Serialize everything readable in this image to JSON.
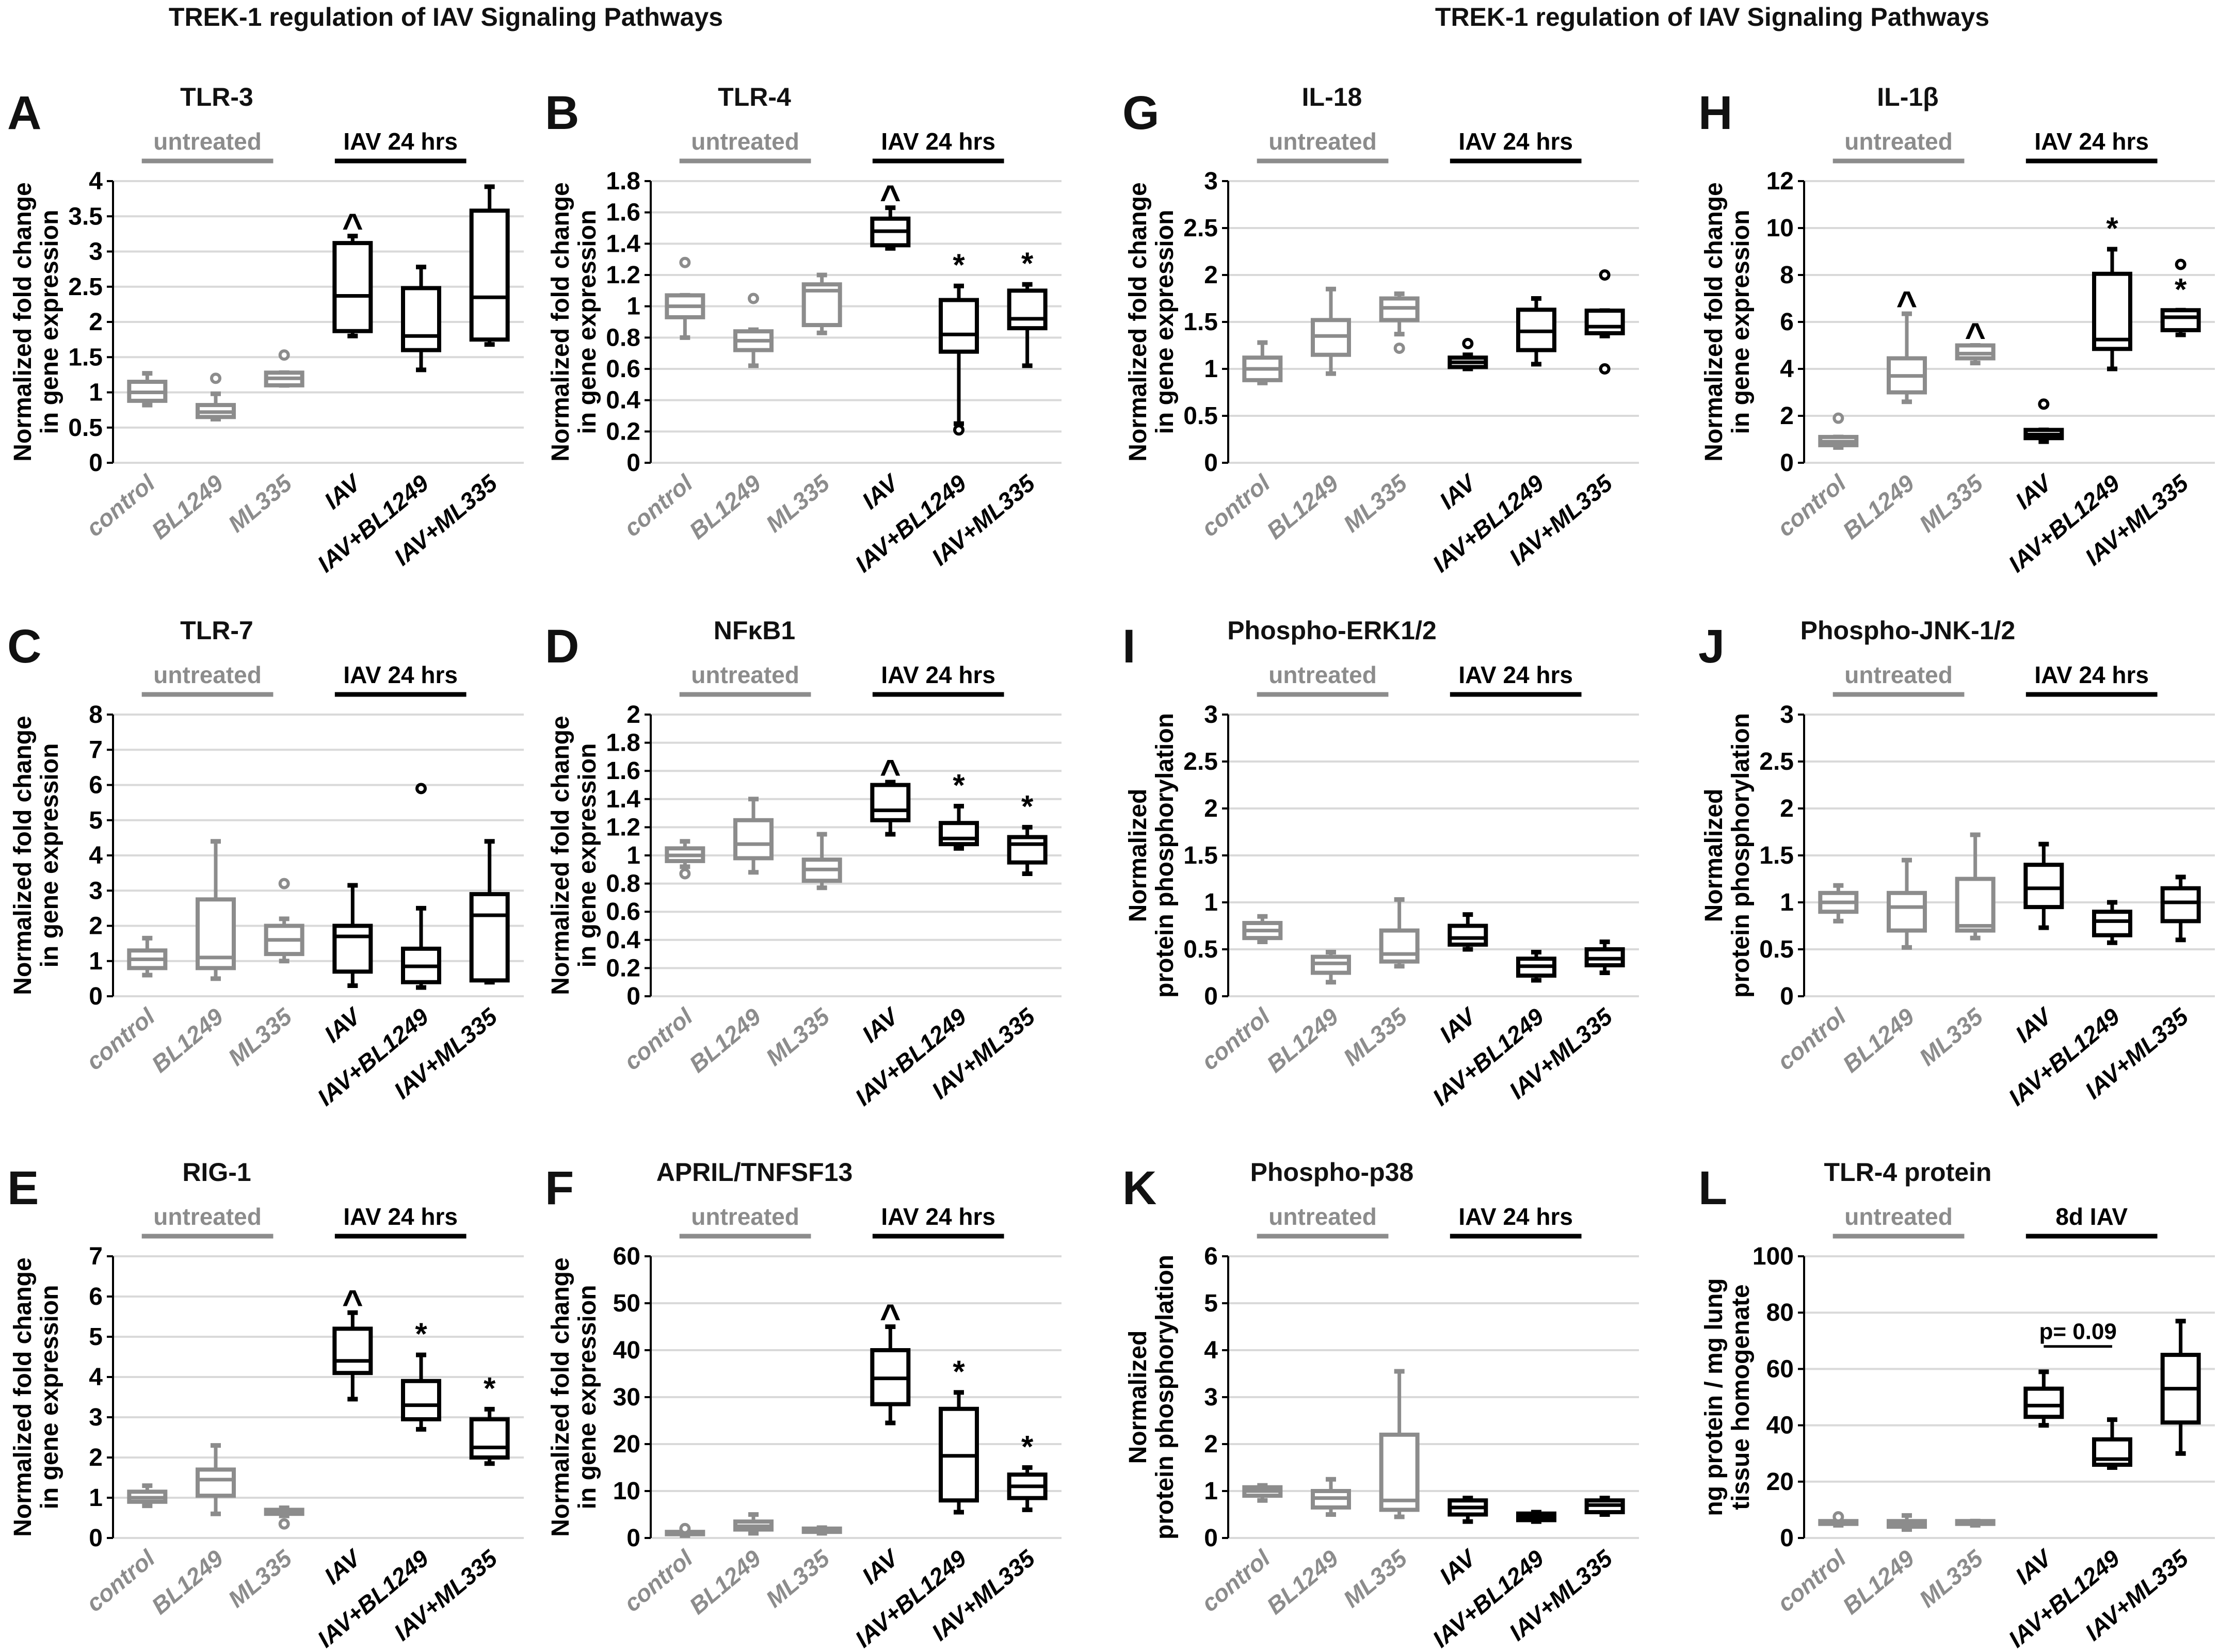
{
  "header": {
    "title_left": "TREK-1 regulation of IAV Signaling Pathways",
    "title_right": "TREK-1 regulation of IAV Signaling Pathways"
  },
  "colors": {
    "untreated": "#8c8c8c",
    "iav": "#000000",
    "grid": "#d9d9d9"
  },
  "chart_data": [
    {
      "type": "box",
      "letter": "A",
      "title": "TLR-3",
      "ylabel": [
        "Normalized fold change",
        "in gene expression"
      ],
      "ylim": [
        0,
        4
      ],
      "ystep": 0.5,
      "groups": [
        "untreated",
        "IAV 24 hrs"
      ],
      "categories": [
        "control",
        "BL1249",
        "ML335",
        "IAV",
        "IAV+BL1249",
        "IAV+ML335"
      ],
      "boxes": [
        [
          0.82,
          0.88,
          1.0,
          1.15,
          1.27
        ],
        [
          0.62,
          0.65,
          0.72,
          0.82,
          0.98
        ],
        [
          1.1,
          1.1,
          1.2,
          1.28,
          1.28
        ],
        [
          1.8,
          1.87,
          2.37,
          3.12,
          3.22
        ],
        [
          1.32,
          1.6,
          1.8,
          2.48,
          2.78
        ],
        [
          1.68,
          1.75,
          2.35,
          3.58,
          3.92
        ]
      ],
      "outliers": [
        [],
        [
          1.2
        ],
        [
          1.53
        ],
        [],
        [],
        []
      ],
      "marks": [
        "",
        "",
        "",
        "^",
        "",
        ""
      ]
    },
    {
      "type": "box",
      "letter": "B",
      "title": "TLR-4",
      "ylabel": [
        "Normalized fold change",
        "in gene expression"
      ],
      "ylim": [
        0,
        1.8
      ],
      "ystep": 0.2,
      "groups": [
        "untreated",
        "IAV 24 hrs"
      ],
      "categories": [
        "control",
        "BL1249",
        "ML335",
        "IAV",
        "IAV+BL1249",
        "IAV+ML335"
      ],
      "boxes": [
        [
          0.8,
          0.93,
          1.0,
          1.07,
          1.07
        ],
        [
          0.62,
          0.72,
          0.78,
          0.84,
          0.85
        ],
        [
          0.83,
          0.88,
          1.1,
          1.14,
          1.2
        ],
        [
          1.37,
          1.39,
          1.48,
          1.56,
          1.63
        ],
        [
          0.25,
          0.71,
          0.82,
          1.04,
          1.13
        ],
        [
          0.62,
          0.86,
          0.92,
          1.1,
          1.14
        ]
      ],
      "outliers": [
        [
          1.28
        ],
        [
          1.05
        ],
        [],
        [],
        [
          0.21
        ],
        []
      ],
      "marks": [
        "",
        "",
        "",
        "^",
        "*",
        "*"
      ]
    },
    {
      "type": "box",
      "letter": "C",
      "title": "TLR-7",
      "ylabel": [
        "Normalized fold change",
        "in gene expression"
      ],
      "ylim": [
        0,
        8
      ],
      "ystep": 1,
      "groups": [
        "untreated",
        "IAV 24 hrs"
      ],
      "categories": [
        "control",
        "BL1249",
        "ML335",
        "IAV",
        "IAV+BL1249",
        "IAV+ML335"
      ],
      "boxes": [
        [
          0.6,
          0.8,
          1.05,
          1.3,
          1.65
        ],
        [
          0.5,
          0.8,
          1.1,
          2.75,
          4.4
        ],
        [
          1.0,
          1.2,
          1.6,
          2.0,
          2.2
        ],
        [
          0.3,
          0.7,
          1.7,
          2.0,
          3.15
        ],
        [
          0.25,
          0.4,
          0.85,
          1.35,
          2.5
        ],
        [
          0.4,
          0.45,
          2.3,
          2.9,
          4.4
        ]
      ],
      "outliers": [
        [],
        [],
        [
          3.2
        ],
        [],
        [
          5.9
        ],
        []
      ],
      "marks": [
        "",
        "",
        "",
        "",
        "",
        ""
      ]
    },
    {
      "type": "box",
      "letter": "D",
      "title": "NFκB1",
      "ylabel": [
        "Normalized fold change",
        "in gene expression"
      ],
      "ylim": [
        0,
        2
      ],
      "ystep": 0.2,
      "groups": [
        "untreated",
        "IAV 24 hrs"
      ],
      "categories": [
        "control",
        "BL1249",
        "ML335",
        "IAV",
        "IAV+BL1249",
        "IAV+ML335"
      ],
      "boxes": [
        [
          0.92,
          0.96,
          1.0,
          1.05,
          1.1
        ],
        [
          0.88,
          0.98,
          1.08,
          1.25,
          1.4
        ],
        [
          0.77,
          0.82,
          0.9,
          0.97,
          1.15
        ],
        [
          1.15,
          1.25,
          1.32,
          1.5,
          1.52
        ],
        [
          1.05,
          1.08,
          1.12,
          1.23,
          1.35
        ],
        [
          0.87,
          0.95,
          1.08,
          1.13,
          1.2
        ]
      ],
      "outliers": [
        [
          0.87
        ],
        [],
        [],
        [],
        [],
        []
      ],
      "marks": [
        "",
        "",
        "",
        "^",
        "*",
        "*"
      ]
    },
    {
      "type": "box",
      "letter": "E",
      "title": "RIG-1",
      "ylabel": [
        "Normalized fold change",
        "in gene expression"
      ],
      "ylim": [
        0,
        7
      ],
      "ystep": 1,
      "groups": [
        "untreated",
        "IAV 24 hrs"
      ],
      "categories": [
        "control",
        "BL1249",
        "ML335",
        "IAV",
        "IAV+BL1249",
        "IAV+ML335"
      ],
      "boxes": [
        [
          0.8,
          0.9,
          1.0,
          1.15,
          1.3
        ],
        [
          0.6,
          1.05,
          1.45,
          1.7,
          2.3
        ],
        [
          0.55,
          0.6,
          0.65,
          0.7,
          0.75
        ],
        [
          3.45,
          4.1,
          4.4,
          5.2,
          5.6
        ],
        [
          2.7,
          2.95,
          3.3,
          3.9,
          4.55
        ],
        [
          1.85,
          2.0,
          2.25,
          2.95,
          3.2
        ]
      ],
      "outliers": [
        [],
        [],
        [
          0.35
        ],
        [],
        [],
        []
      ],
      "marks": [
        "",
        "",
        "",
        "^",
        "*",
        "*"
      ]
    },
    {
      "type": "box",
      "letter": "F",
      "title": "APRIL/TNFSF13",
      "ylabel": [
        "Normalized fold change",
        "in gene expression"
      ],
      "ylim": [
        0,
        60
      ],
      "ystep": 10,
      "groups": [
        "untreated",
        "IAV 24 hrs"
      ],
      "categories": [
        "control",
        "BL1249",
        "ML335",
        "IAV",
        "IAV+BL1249",
        "IAV+ML335"
      ],
      "boxes": [
        [
          0.5,
          0.8,
          1.0,
          1.3,
          1.5
        ],
        [
          1.0,
          1.8,
          2.5,
          3.5,
          5.0
        ],
        [
          1.0,
          1.3,
          1.6,
          2.0,
          2.2
        ],
        [
          24.5,
          28.5,
          34,
          40,
          45
        ],
        [
          5.5,
          8,
          17.5,
          27.5,
          31
        ],
        [
          6,
          8.5,
          11,
          13.5,
          15
        ]
      ],
      "outliers": [
        [
          2
        ],
        [],
        [],
        [],
        [],
        []
      ],
      "marks": [
        "",
        "",
        "",
        "^",
        "*",
        "*"
      ]
    },
    {
      "type": "box",
      "letter": "G",
      "title": "IL-18",
      "ylabel": [
        "Normalized fold change",
        "in gene expression"
      ],
      "ylim": [
        0,
        3
      ],
      "ystep": 0.5,
      "groups": [
        "untreated",
        "IAV 24 hrs"
      ],
      "categories": [
        "control",
        "BL1249",
        "ML335",
        "IAV",
        "IAV+BL1249",
        "IAV+ML335"
      ],
      "boxes": [
        [
          0.85,
          0.88,
          1.0,
          1.12,
          1.28
        ],
        [
          0.95,
          1.15,
          1.35,
          1.52,
          1.85
        ],
        [
          1.37,
          1.52,
          1.65,
          1.75,
          1.8
        ],
        [
          1.0,
          1.02,
          1.07,
          1.12,
          1.15
        ],
        [
          1.05,
          1.2,
          1.4,
          1.63,
          1.75
        ],
        [
          1.35,
          1.38,
          1.45,
          1.62,
          1.62
        ]
      ],
      "outliers": [
        [],
        [],
        [
          1.22
        ],
        [
          1.27
        ],
        [],
        [
          2.0,
          1.0
        ]
      ],
      "marks": [
        "",
        "",
        "",
        "",
        "",
        ""
      ]
    },
    {
      "type": "box",
      "letter": "H",
      "title": "IL-1β",
      "ylabel": [
        "Normalized fold change",
        "in gene expression"
      ],
      "ylim": [
        0,
        12
      ],
      "ystep": 2,
      "groups": [
        "untreated",
        "IAV 24 hrs"
      ],
      "categories": [
        "control",
        "BL1249",
        "ML335",
        "IAV",
        "IAV+BL1249",
        "IAV+ML335"
      ],
      "boxes": [
        [
          0.65,
          0.75,
          0.9,
          1.1,
          1.1
        ],
        [
          2.6,
          3.0,
          3.7,
          4.45,
          6.35
        ],
        [
          4.25,
          4.45,
          4.65,
          5.0,
          5.0
        ],
        [
          0.9,
          1.05,
          1.2,
          1.4,
          1.4
        ],
        [
          4.0,
          4.85,
          5.25,
          8.05,
          9.1
        ],
        [
          5.45,
          5.65,
          6.2,
          6.5,
          6.5
        ]
      ],
      "outliers": [
        [
          1.9
        ],
        [],
        [],
        [
          2.5
        ],
        [],
        [
          8.45
        ]
      ],
      "marks": [
        "",
        "^",
        "^",
        "",
        "*",
        "*"
      ]
    },
    {
      "type": "box",
      "letter": "I",
      "title": "Phospho-ERK1/2",
      "ylabel": [
        "Normalized",
        "protein phosphorylation"
      ],
      "ylim": [
        0,
        3
      ],
      "ystep": 0.5,
      "groups": [
        "untreated",
        "IAV 24 hrs"
      ],
      "categories": [
        "control",
        "BL1249",
        "ML335",
        "IAV",
        "IAV+BL1249",
        "IAV+ML335"
      ],
      "boxes": [
        [
          0.58,
          0.62,
          0.7,
          0.78,
          0.85
        ],
        [
          0.15,
          0.25,
          0.35,
          0.42,
          0.47
        ],
        [
          0.32,
          0.37,
          0.45,
          0.7,
          1.03
        ],
        [
          0.5,
          0.55,
          0.62,
          0.75,
          0.87
        ],
        [
          0.17,
          0.22,
          0.32,
          0.4,
          0.47
        ],
        [
          0.25,
          0.33,
          0.4,
          0.5,
          0.58
        ]
      ],
      "outliers": [
        [],
        [],
        [],
        [],
        [],
        []
      ],
      "marks": [
        "",
        "",
        "",
        "",
        "",
        ""
      ]
    },
    {
      "type": "box",
      "letter": "J",
      "title": "Phospho-JNK-1/2",
      "ylabel": [
        "Normalized",
        "protein phosphorylation"
      ],
      "ylim": [
        0,
        3
      ],
      "ystep": 0.5,
      "groups": [
        "untreated",
        "IAV 24 hrs"
      ],
      "categories": [
        "control",
        "BL1249",
        "ML335",
        "IAV",
        "IAV+BL1249",
        "IAV+ML335"
      ],
      "boxes": [
        [
          0.8,
          0.9,
          1.0,
          1.1,
          1.18
        ],
        [
          0.52,
          0.7,
          0.95,
          1.1,
          1.45
        ],
        [
          0.62,
          0.7,
          0.75,
          1.25,
          1.72
        ],
        [
          0.73,
          0.95,
          1.15,
          1.4,
          1.62
        ],
        [
          0.57,
          0.65,
          0.8,
          0.9,
          1.0
        ],
        [
          0.6,
          0.8,
          1.0,
          1.15,
          1.27
        ]
      ],
      "outliers": [
        [],
        [],
        [],
        [],
        [],
        []
      ],
      "marks": [
        "",
        "",
        "",
        "",
        "",
        ""
      ]
    },
    {
      "type": "box",
      "letter": "K",
      "title": "Phospho-p38",
      "ylabel": [
        "Normalized",
        "protein phosphorylation"
      ],
      "ylim": [
        0,
        6
      ],
      "ystep": 1,
      "groups": [
        "untreated",
        "IAV 24 hrs"
      ],
      "categories": [
        "control",
        "BL1249",
        "ML335",
        "IAV",
        "IAV+BL1249",
        "IAV+ML335"
      ],
      "boxes": [
        [
          0.8,
          0.9,
          1.0,
          1.08,
          1.12
        ],
        [
          0.5,
          0.65,
          0.85,
          1.0,
          1.25
        ],
        [
          0.45,
          0.6,
          0.8,
          2.2,
          3.55
        ],
        [
          0.35,
          0.5,
          0.65,
          0.8,
          0.85
        ],
        [
          0.35,
          0.38,
          0.45,
          0.52,
          0.55
        ],
        [
          0.5,
          0.55,
          0.7,
          0.8,
          0.85
        ]
      ],
      "outliers": [
        [],
        [],
        [],
        [],
        [],
        []
      ],
      "marks": [
        "",
        "",
        "",
        "",
        "",
        ""
      ]
    },
    {
      "type": "box",
      "letter": "L",
      "title": "TLR-4 protein",
      "ylabel": [
        "ng protein / mg lung",
        "tissue homogenate"
      ],
      "ylim": [
        0,
        100
      ],
      "ystep": 20,
      "groups": [
        "untreated",
        "8d IAV"
      ],
      "categories": [
        "control",
        "BL1249",
        "ML335",
        "IAV",
        "IAV+BL1249",
        "IAV+ML335"
      ],
      "boxes": [
        [
          4.5,
          5,
          5.5,
          6,
          6.5
        ],
        [
          3,
          4,
          5,
          6,
          8
        ],
        [
          4.5,
          5,
          5.5,
          6,
          6
        ],
        [
          40,
          43,
          47,
          53,
          59
        ],
        [
          25,
          26,
          28,
          35,
          42
        ],
        [
          30,
          41,
          53,
          65,
          77
        ]
      ],
      "outliers": [
        [
          7.5
        ],
        [],
        [],
        [],
        [],
        []
      ],
      "marks": [
        "",
        "",
        "",
        "",
        "",
        ""
      ],
      "annotation": {
        "text": "p= 0.09",
        "between": [
          3,
          4
        ],
        "y": 68
      }
    }
  ]
}
